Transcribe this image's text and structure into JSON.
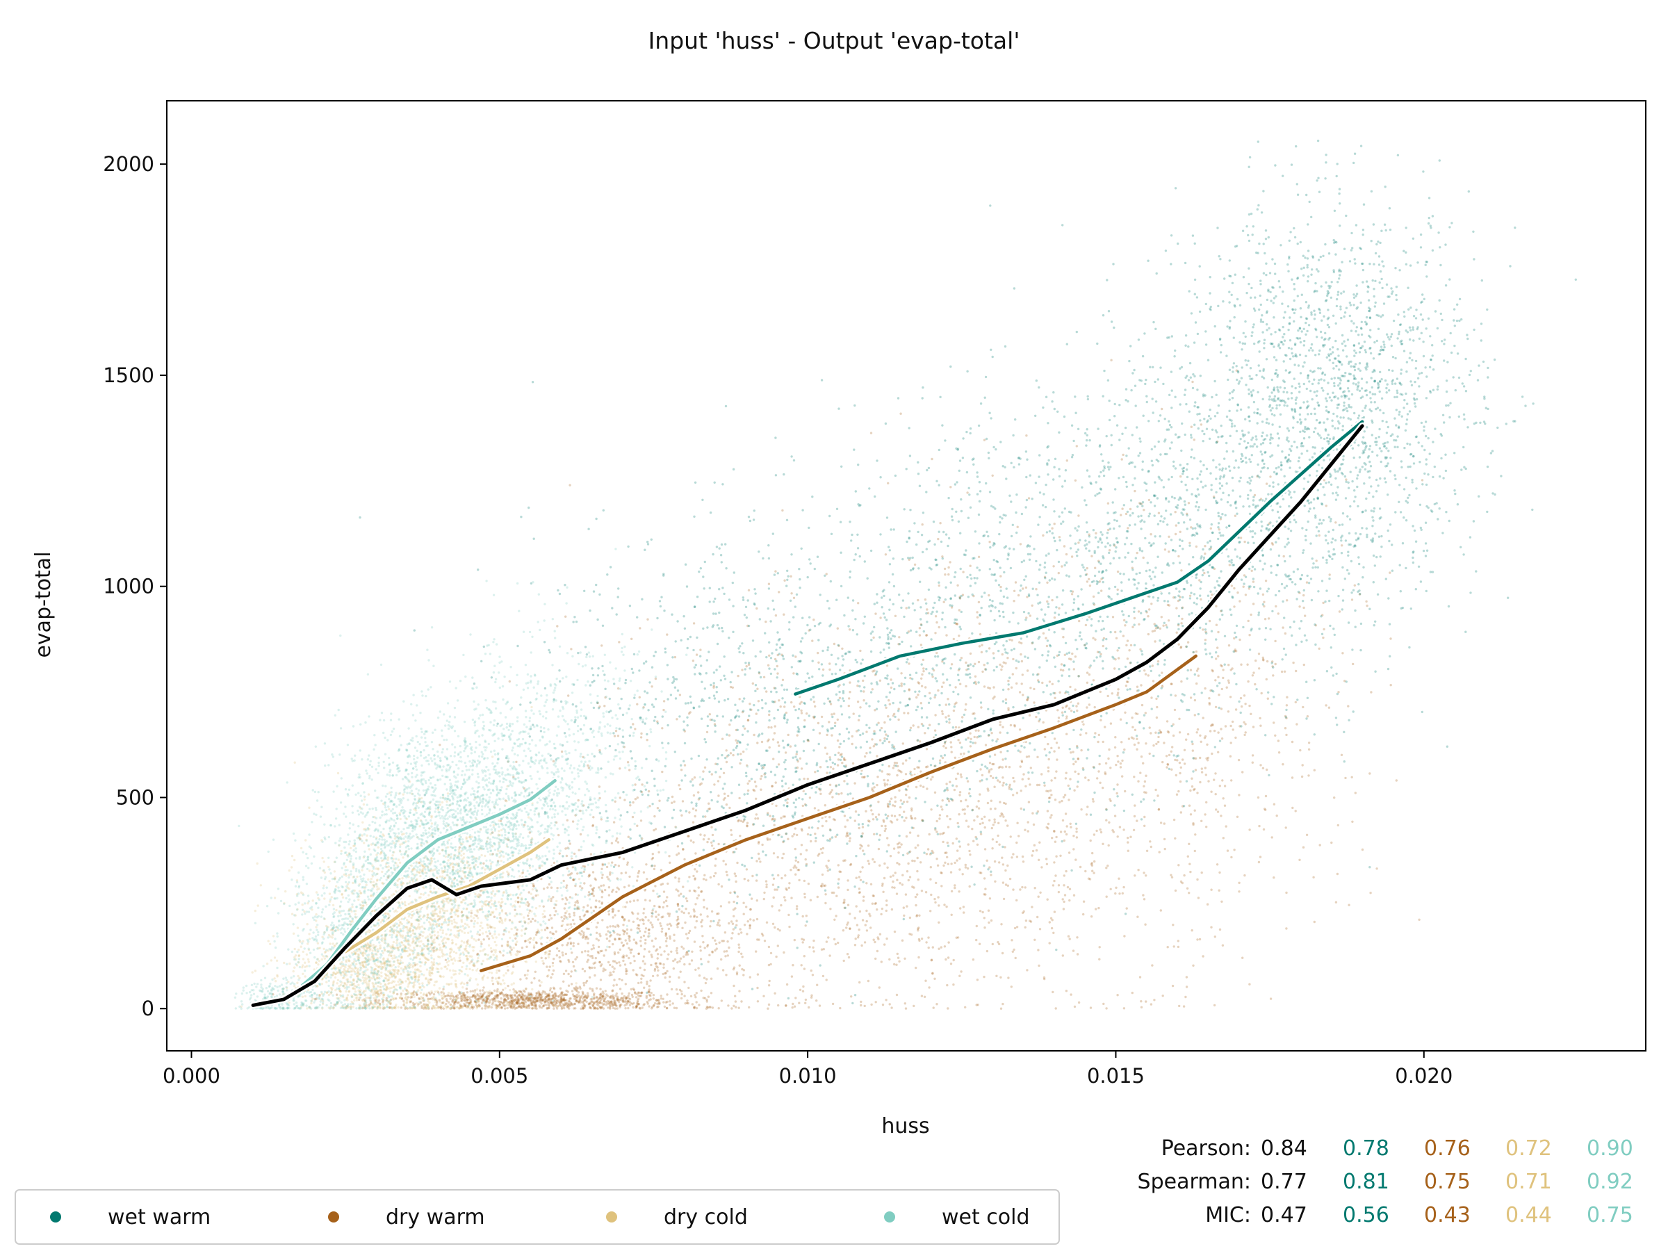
{
  "chart_data": {
    "type": "scatter",
    "title": "Input 'huss' - Output 'evap-total'",
    "xlabel": "huss",
    "ylabel": "evap-total",
    "xlim": [
      -0.0004,
      0.0236
    ],
    "ylim": [
      -100,
      2150
    ],
    "x_ticks": [
      {
        "value": 0.0,
        "label": "0.000"
      },
      {
        "value": 0.005,
        "label": "0.005"
      },
      {
        "value": 0.01,
        "label": "0.010"
      },
      {
        "value": 0.015,
        "label": "0.015"
      },
      {
        "value": 0.02,
        "label": "0.020"
      }
    ],
    "y_ticks": [
      {
        "value": 0,
        "label": "0"
      },
      {
        "value": 500,
        "label": "500"
      },
      {
        "value": 1000,
        "label": "1000"
      },
      {
        "value": 1500,
        "label": "1500"
      },
      {
        "value": 2000,
        "label": "2000"
      }
    ],
    "grid": false,
    "legend": {
      "placement": "bottom-left",
      "entries": [
        {
          "label": "wet warm",
          "color": "#01796f"
        },
        {
          "label": "dry warm",
          "color": "#a6611a"
        },
        {
          "label": "dry cold",
          "color": "#dfc27d"
        },
        {
          "label": "wet cold",
          "color": "#80cdc1"
        }
      ]
    },
    "series": [
      {
        "name": "wet warm",
        "color": "#01796f",
        "cloud": [
          {
            "x": 0.0095,
            "y": 700,
            "sx": 0.002,
            "sy": 220,
            "n": 1100
          },
          {
            "x": 0.014,
            "y": 1000,
            "sx": 0.002,
            "sy": 220,
            "n": 1000
          },
          {
            "x": 0.0185,
            "y": 1450,
            "sx": 0.0012,
            "sy": 230,
            "n": 1700
          },
          {
            "x": 0.0165,
            "y": 1200,
            "sx": 0.0015,
            "sy": 220,
            "n": 700
          }
        ],
        "trend": [
          {
            "x": 0.0098,
            "y": 745
          },
          {
            "x": 0.0105,
            "y": 780
          },
          {
            "x": 0.0115,
            "y": 835
          },
          {
            "x": 0.0125,
            "y": 865
          },
          {
            "x": 0.0135,
            "y": 890
          },
          {
            "x": 0.0145,
            "y": 935
          },
          {
            "x": 0.0155,
            "y": 985
          },
          {
            "x": 0.016,
            "y": 1010
          },
          {
            "x": 0.0165,
            "y": 1060
          },
          {
            "x": 0.017,
            "y": 1130
          },
          {
            "x": 0.0175,
            "y": 1200
          },
          {
            "x": 0.018,
            "y": 1265
          },
          {
            "x": 0.0185,
            "y": 1330
          },
          {
            "x": 0.019,
            "y": 1390
          }
        ]
      },
      {
        "name": "dry warm",
        "color": "#a6611a",
        "cloud": [
          {
            "x": 0.0055,
            "y": 20,
            "sx": 0.0012,
            "sy": 12,
            "n": 900
          },
          {
            "x": 0.0068,
            "y": 170,
            "sx": 0.0012,
            "sy": 110,
            "n": 1000
          },
          {
            "x": 0.0105,
            "y": 420,
            "sx": 0.0022,
            "sy": 230,
            "n": 1400
          },
          {
            "x": 0.014,
            "y": 620,
            "sx": 0.002,
            "sy": 260,
            "n": 900
          },
          {
            "x": 0.0165,
            "y": 800,
            "sx": 0.0014,
            "sy": 260,
            "n": 400
          }
        ],
        "trend": [
          {
            "x": 0.0047,
            "y": 90
          },
          {
            "x": 0.0055,
            "y": 125
          },
          {
            "x": 0.006,
            "y": 165
          },
          {
            "x": 0.0065,
            "y": 215
          },
          {
            "x": 0.007,
            "y": 265
          },
          {
            "x": 0.008,
            "y": 340
          },
          {
            "x": 0.009,
            "y": 400
          },
          {
            "x": 0.01,
            "y": 450
          },
          {
            "x": 0.011,
            "y": 500
          },
          {
            "x": 0.012,
            "y": 560
          },
          {
            "x": 0.013,
            "y": 615
          },
          {
            "x": 0.014,
            "y": 665
          },
          {
            "x": 0.015,
            "y": 720
          },
          {
            "x": 0.0155,
            "y": 750
          },
          {
            "x": 0.0163,
            "y": 835
          }
        ]
      },
      {
        "name": "dry cold",
        "color": "#dfc27d",
        "cloud": [
          {
            "x": 0.0038,
            "y": 200,
            "sx": 0.0009,
            "sy": 120,
            "n": 1800
          },
          {
            "x": 0.0028,
            "y": 80,
            "sx": 0.0006,
            "sy": 50,
            "n": 600
          }
        ],
        "trend": [
          {
            "x": 0.0025,
            "y": 135
          },
          {
            "x": 0.003,
            "y": 180
          },
          {
            "x": 0.0035,
            "y": 235
          },
          {
            "x": 0.004,
            "y": 265
          },
          {
            "x": 0.0045,
            "y": 290
          },
          {
            "x": 0.005,
            "y": 330
          },
          {
            "x": 0.0055,
            "y": 370
          },
          {
            "x": 0.0058,
            "y": 400
          }
        ]
      },
      {
        "name": "wet cold",
        "color": "#80cdc1",
        "cloud": [
          {
            "x": 0.0028,
            "y": 180,
            "sx": 0.0006,
            "sy": 120,
            "n": 900
          },
          {
            "x": 0.0042,
            "y": 420,
            "sx": 0.0009,
            "sy": 130,
            "n": 2200
          },
          {
            "x": 0.0058,
            "y": 560,
            "sx": 0.0009,
            "sy": 160,
            "n": 800
          },
          {
            "x": 0.0015,
            "y": 25,
            "sx": 0.0004,
            "sy": 20,
            "n": 250
          }
        ],
        "trend": [
          {
            "x": 0.0018,
            "y": 55
          },
          {
            "x": 0.0022,
            "y": 105
          },
          {
            "x": 0.0026,
            "y": 185
          },
          {
            "x": 0.003,
            "y": 260
          },
          {
            "x": 0.0035,
            "y": 345
          },
          {
            "x": 0.004,
            "y": 400
          },
          {
            "x": 0.0045,
            "y": 430
          },
          {
            "x": 0.005,
            "y": 460
          },
          {
            "x": 0.0055,
            "y": 495
          },
          {
            "x": 0.0059,
            "y": 540
          }
        ]
      }
    ],
    "overall_trend": {
      "color": "#000000",
      "points": [
        {
          "x": 0.001,
          "y": 8
        },
        {
          "x": 0.0015,
          "y": 22
        },
        {
          "x": 0.002,
          "y": 65
        },
        {
          "x": 0.0025,
          "y": 145
        },
        {
          "x": 0.003,
          "y": 220
        },
        {
          "x": 0.0035,
          "y": 285
        },
        {
          "x": 0.0039,
          "y": 305
        },
        {
          "x": 0.0043,
          "y": 270
        },
        {
          "x": 0.0047,
          "y": 290
        },
        {
          "x": 0.0055,
          "y": 305
        },
        {
          "x": 0.006,
          "y": 340
        },
        {
          "x": 0.007,
          "y": 370
        },
        {
          "x": 0.008,
          "y": 420
        },
        {
          "x": 0.009,
          "y": 470
        },
        {
          "x": 0.01,
          "y": 530
        },
        {
          "x": 0.011,
          "y": 580
        },
        {
          "x": 0.012,
          "y": 630
        },
        {
          "x": 0.013,
          "y": 685
        },
        {
          "x": 0.014,
          "y": 720
        },
        {
          "x": 0.015,
          "y": 780
        },
        {
          "x": 0.0155,
          "y": 820
        },
        {
          "x": 0.016,
          "y": 875
        },
        {
          "x": 0.0165,
          "y": 950
        },
        {
          "x": 0.017,
          "y": 1040
        },
        {
          "x": 0.0175,
          "y": 1120
        },
        {
          "x": 0.018,
          "y": 1200
        },
        {
          "x": 0.0185,
          "y": 1290
        },
        {
          "x": 0.019,
          "y": 1380
        }
      ]
    },
    "stats": [
      {
        "label": "Pearson:",
        "overall": "0.84",
        "wet_warm": "0.78",
        "dry_warm": "0.76",
        "dry_cold": "0.72",
        "wet_cold": "0.90"
      },
      {
        "label": "Spearman:",
        "overall": "0.77",
        "wet_warm": "0.81",
        "dry_warm": "0.75",
        "dry_cold": "0.71",
        "wet_cold": "0.92"
      },
      {
        "label": "MIC:",
        "overall": "0.47",
        "wet_warm": "0.56",
        "dry_warm": "0.43",
        "dry_cold": "0.44",
        "wet_cold": "0.75"
      }
    ]
  }
}
